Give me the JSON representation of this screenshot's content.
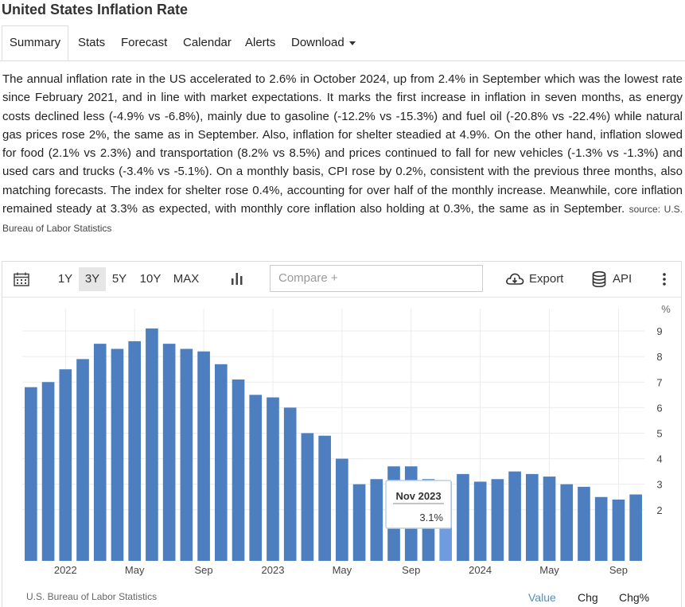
{
  "page": {
    "title": "United States Inflation Rate"
  },
  "tabs": [
    {
      "label": "Summary",
      "active": true
    },
    {
      "label": "Stats"
    },
    {
      "label": "Forecast"
    },
    {
      "label": "Calendar"
    },
    {
      "label": "Alerts"
    },
    {
      "label": "Download"
    }
  ],
  "description": {
    "text": "The annual inflation rate in the US accelerated to 2.6% in October 2024, up from 2.4% in September which was the lowest rate since February 2021, and in line with market expectations. It marks the first increase in inflation in seven months, as energy costs declined less (-4.9% vs -6.8%), mainly due to gasoline (-12.2% vs -15.3%) and fuel oil (-20.8% vs -22.4%) while natural gas prices rose 2%, the same as in September. Also, inflation for shelter steadied at 4.9%. On the other hand, inflation slowed for food (2.1% vs 2.3%) and transportation (8.2% vs 8.5%) and prices continued to fall for new vehicles (-1.3% vs -1.3%) and used cars and trucks (-3.4% vs -5.1%). On a monthly basis, CPI rose by 0.2%, consistent with the previous three months, also matching forecasts. The index for shelter rose 0.4%, accounting for over half of the monthly increase. Meanwhile, core inflation remained steady at 3.3% as expected, with monthly core inflation also holding at 0.3%, the same as in September.",
    "source": "source: U.S. Bureau of Labor Statistics"
  },
  "toolbar": {
    "ranges": [
      "1Y",
      "3Y",
      "5Y",
      "10Y",
      "MAX"
    ],
    "active_range": "3Y",
    "compare_placeholder": "Compare +",
    "export_label": "Export",
    "api_label": "API",
    "icons": [
      "calendar-icon",
      "bar-chart-icon",
      "cloud-download-icon",
      "database-icon",
      "more-vertical-icon"
    ]
  },
  "chart_data": {
    "type": "bar",
    "ylabel": "%",
    "ylim": [
      0,
      9.5
    ],
    "yticks": [
      2,
      3,
      4,
      5,
      6,
      7,
      8,
      9
    ],
    "color": "#4d7ebf",
    "highlight_color": "#6f9be0",
    "categories": [
      "Nov 2021",
      "Dec 2021",
      "Jan 2022",
      "Feb 2022",
      "Mar 2022",
      "Apr 2022",
      "May 2022",
      "Jun 2022",
      "Jul 2022",
      "Aug 2022",
      "Sep 2022",
      "Oct 2022",
      "Nov 2022",
      "Dec 2022",
      "Jan 2023",
      "Feb 2023",
      "Mar 2023",
      "Apr 2023",
      "May 2023",
      "Jun 2023",
      "Jul 2023",
      "Aug 2023",
      "Sep 2023",
      "Oct 2023",
      "Nov 2023",
      "Dec 2023",
      "Jan 2024",
      "Feb 2024",
      "Mar 2024",
      "Apr 2024",
      "May 2024",
      "Jun 2024",
      "Jul 2024",
      "Aug 2024",
      "Sep 2024",
      "Oct 2024"
    ],
    "values": [
      6.8,
      7.0,
      7.5,
      7.9,
      8.5,
      8.3,
      8.6,
      9.1,
      8.5,
      8.3,
      8.2,
      7.7,
      7.1,
      6.5,
      6.4,
      6.0,
      5.0,
      4.9,
      4.0,
      3.0,
      3.2,
      3.7,
      3.7,
      3.2,
      3.1,
      3.4,
      3.1,
      3.2,
      3.5,
      3.4,
      3.3,
      3.0,
      2.9,
      2.5,
      2.4,
      2.6
    ],
    "xtick_labels": [
      {
        "index": 2,
        "label": "2022"
      },
      {
        "index": 6,
        "label": "May"
      },
      {
        "index": 10,
        "label": "Sep"
      },
      {
        "index": 14,
        "label": "2023"
      },
      {
        "index": 18,
        "label": "May"
      },
      {
        "index": 22,
        "label": "Sep"
      },
      {
        "index": 26,
        "label": "2024"
      },
      {
        "index": 30,
        "label": "May"
      },
      {
        "index": 34,
        "label": "Sep"
      }
    ],
    "tooltip": {
      "index": 24,
      "date": "Nov 2023",
      "value": "3.1%"
    },
    "grid": true
  },
  "footer": {
    "source": "U.S. Bureau of Labor Statistics",
    "modes": [
      "Value",
      "Chg",
      "Chg%"
    ],
    "active_mode": "Value"
  }
}
